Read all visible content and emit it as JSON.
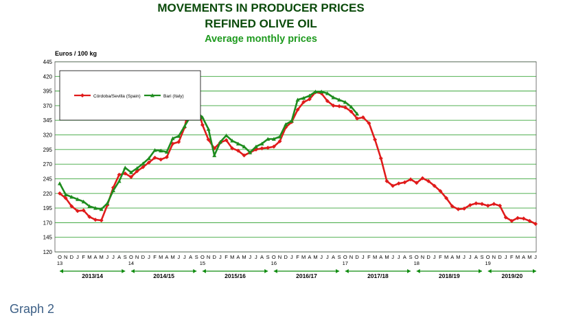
{
  "caption": "Graph 2",
  "colors": {
    "spain": "#e01b1b",
    "italy": "#1e8c1e",
    "title": "#0a4a0a",
    "subtitle": "#1e9a1e",
    "grid": "#3aa63a",
    "season": "#0c8a0c"
  },
  "chart_data": {
    "type": "line",
    "title": "MOVEMENTS IN PRODUCER PRICES",
    "subtitle": "REFINED OLIVE OIL",
    "subtitle2": "Average monthly prices",
    "ylabel": "Euros / 100 kg",
    "ylim": [
      120,
      445
    ],
    "yticks": [
      120,
      145,
      170,
      195,
      220,
      245,
      270,
      295,
      320,
      345,
      370,
      395,
      420,
      445
    ],
    "grid": true,
    "legend_position": "top-left",
    "month_letters": [
      "O",
      "N",
      "D",
      "J",
      "F",
      "M",
      "A",
      "M",
      "J",
      "J",
      "A",
      "S"
    ],
    "year_marks": [
      {
        "label": "13",
        "index": 0
      },
      {
        "label": "14",
        "index": 12
      },
      {
        "label": "15",
        "index": 24
      },
      {
        "label": "16",
        "index": 36
      },
      {
        "label": "17",
        "index": 48
      },
      {
        "label": "18",
        "index": 60
      },
      {
        "label": "19",
        "index": 72
      }
    ],
    "seasons": [
      "2013/14",
      "2014/15",
      "2015/16",
      "2016/17",
      "2017/18",
      "2018/19",
      "2019/20"
    ],
    "series": [
      {
        "name": "Córdoba/Sevilla (Spain)",
        "values": [
          220,
          212,
          198,
          190,
          191,
          180,
          175,
          174,
          200,
          230,
          252,
          254,
          248,
          258,
          265,
          273,
          281,
          278,
          282,
          305,
          308,
          333,
          380,
          375,
          337,
          312,
          297,
          307,
          311,
          297,
          293,
          285,
          290,
          295,
          297,
          298,
          300,
          309,
          333,
          342,
          363,
          376,
          381,
          393,
          391,
          378,
          370,
          369,
          367,
          360,
          348,
          350,
          340,
          312,
          280,
          241,
          233,
          237,
          239,
          244,
          238,
          246,
          241,
          233,
          224,
          212,
          198,
          193,
          194,
          200,
          203,
          202,
          199,
          202,
          199,
          179,
          173,
          178,
          177,
          173,
          168
        ]
      },
      {
        "name": "Bari (Italy)",
        "values": [
          237,
          218,
          214,
          210,
          206,
          198,
          195,
          193,
          203,
          225,
          241,
          264,
          256,
          263,
          271,
          280,
          294,
          293,
          291,
          314,
          318,
          335,
          352,
          360,
          350,
          330,
          285,
          308,
          319,
          310,
          305,
          300,
          290,
          300,
          305,
          313,
          313,
          317,
          338,
          344,
          380,
          383,
          387,
          394,
          394,
          391,
          384,
          380,
          376,
          368,
          356
        ]
      }
    ]
  }
}
